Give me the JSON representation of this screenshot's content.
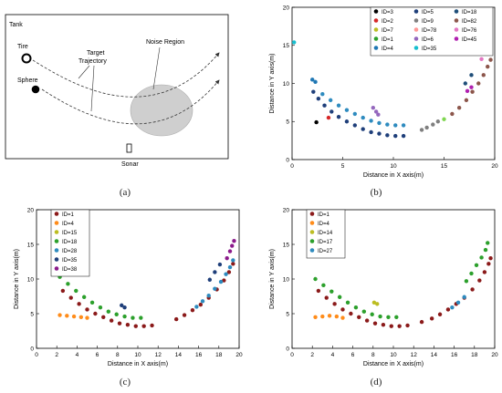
{
  "panels": {
    "a": {
      "caption": "(a)",
      "labels": {
        "tank": "Tank",
        "tire": "Tire",
        "sphere": "Sphere",
        "target": "Target",
        "trajectory": "Trajectory",
        "noise": "Noise Region",
        "sonar": "Sonar"
      }
    },
    "b": {
      "caption": "(b)"
    },
    "c": {
      "caption": "(c)"
    },
    "d": {
      "caption": "(d)"
    }
  },
  "chart_data": [
    {
      "panel": "b",
      "type": "scatter",
      "xlabel": "Distance in X axis(m)",
      "ylabel": "Distance in Y axis(m)",
      "xlim": [
        0,
        20
      ],
      "ylim": [
        0,
        20
      ],
      "xticks": [
        0,
        5,
        10,
        15,
        20
      ],
      "yticks": [
        0,
        5,
        10,
        15,
        20
      ],
      "legend_position": "top-right",
      "legend_columns": 3,
      "series": [
        {
          "name": "ID=3",
          "color": "#000000",
          "points": [
            [
              2.4,
              4.9
            ]
          ]
        },
        {
          "name": "ID=2",
          "color": "#d62728",
          "points": [
            [
              3.6,
              5.5
            ]
          ]
        },
        {
          "name": "ID=7",
          "color": "#bcbd22",
          "points": []
        },
        {
          "name": "ID=1",
          "color": "#2ca02c",
          "points": []
        },
        {
          "name": "ID=4",
          "color": "#1f77b4",
          "points": [
            [
              2.0,
              10.5
            ],
            [
              2.3,
              10.2
            ]
          ]
        },
        {
          "name": "ID=5",
          "color": "#1f3f7a",
          "points": [
            [
              2.1,
              8.9
            ],
            [
              2.6,
              8.0
            ],
            [
              3.2,
              7.1
            ],
            [
              3.9,
              6.3
            ],
            [
              4.6,
              5.6
            ],
            [
              5.4,
              5.0
            ],
            [
              6.2,
              4.5
            ],
            [
              7.0,
              4.0
            ],
            [
              7.8,
              3.6
            ],
            [
              8.6,
              3.4
            ],
            [
              9.4,
              3.2
            ],
            [
              10.2,
              3.1
            ],
            [
              11.0,
              3.1
            ]
          ]
        },
        {
          "name": "ID=9",
          "color": "#7f7f7f",
          "points": [
            [
              12.8,
              3.9
            ],
            [
              13.3,
              4.2
            ],
            [
              13.9,
              4.6
            ],
            [
              14.4,
              5.0
            ]
          ]
        },
        {
          "name": "ID=78",
          "color": "#ff9896",
          "points": []
        },
        {
          "name": "ID=6",
          "color": "#9467bd",
          "points": [
            [
              8.0,
              6.8
            ],
            [
              8.3,
              6.3
            ],
            [
              8.5,
              5.9
            ]
          ]
        },
        {
          "name": "ID=35",
          "color": "#17becf",
          "points": [
            [
              0.2,
              15.4
            ]
          ]
        },
        {
          "name": "ID=18",
          "color": "#1f4e79",
          "points": [
            [
              17.1,
              10.0
            ],
            [
              17.7,
              11.1
            ]
          ]
        },
        {
          "name": "ID=82",
          "color": "#8c564b",
          "points": [
            [
              15.8,
              6.0
            ],
            [
              16.5,
              6.8
            ],
            [
              17.2,
              7.8
            ],
            [
              17.8,
              8.9
            ],
            [
              18.4,
              10.0
            ],
            [
              18.9,
              11.1
            ],
            [
              19.3,
              12.2
            ],
            [
              19.6,
              13.1
            ]
          ]
        },
        {
          "name": "ID=76",
          "color": "#e377c2",
          "points": [
            [
              18.7,
              13.2
            ],
            [
              19.0,
              14.0
            ],
            [
              19.3,
              14.8
            ],
            [
              19.5,
              15.4
            ]
          ]
        },
        {
          "name": "ID=45",
          "color": "#b020b0",
          "points": [
            [
              17.3,
              9.0
            ],
            [
              17.7,
              9.5
            ]
          ]
        },
        {
          "name": "",
          "color": "#2e8bbf",
          "points": [
            [
              3.0,
              8.6
            ],
            [
              3.8,
              7.8
            ],
            [
              4.6,
              7.1
            ],
            [
              5.4,
              6.5
            ],
            [
              6.2,
              6.0
            ],
            [
              7.0,
              5.5
            ],
            [
              7.8,
              5.1
            ],
            [
              8.6,
              4.8
            ],
            [
              9.4,
              4.6
            ],
            [
              10.2,
              4.5
            ],
            [
              11.0,
              4.5
            ]
          ]
        },
        {
          "name": "",
          "color": "#7fd651",
          "points": [
            [
              15.0,
              5.3
            ]
          ]
        }
      ]
    },
    {
      "panel": "c",
      "type": "scatter",
      "xlabel": "Distance in X axis(m)",
      "ylabel": "Distance in Y axis(m)",
      "xlim": [
        0,
        20
      ],
      "ylim": [
        0,
        20
      ],
      "xticks": [
        0,
        2,
        4,
        6,
        8,
        10,
        12,
        14,
        16,
        18,
        20
      ],
      "yticks": [
        0,
        5,
        10,
        15,
        20
      ],
      "legend_position": "top-left",
      "legend_columns": 1,
      "series": [
        {
          "name": "ID=1",
          "color": "#8b1a1a",
          "points": [
            [
              2.6,
              8.3
            ],
            [
              3.4,
              7.3
            ],
            [
              4.2,
              6.4
            ],
            [
              5.0,
              5.6
            ],
            [
              5.8,
              5.0
            ],
            [
              6.6,
              4.5
            ],
            [
              7.4,
              4.0
            ],
            [
              8.2,
              3.6
            ],
            [
              9.0,
              3.4
            ],
            [
              9.8,
              3.2
            ],
            [
              10.6,
              3.2
            ],
            [
              11.4,
              3.3
            ],
            [
              13.8,
              4.2
            ],
            [
              14.6,
              4.8
            ],
            [
              15.4,
              5.5
            ],
            [
              16.2,
              6.3
            ],
            [
              17.0,
              7.3
            ],
            [
              17.8,
              8.5
            ],
            [
              18.5,
              9.8
            ],
            [
              19.0,
              11.0
            ],
            [
              19.4,
              12.2
            ]
          ]
        },
        {
          "name": "ID=4",
          "color": "#ff8c1a",
          "points": [
            [
              2.3,
              4.8
            ],
            [
              3.0,
              4.7
            ],
            [
              3.7,
              4.6
            ],
            [
              4.4,
              4.5
            ],
            [
              5.0,
              4.4
            ]
          ]
        },
        {
          "name": "ID=15",
          "color": "#bcbd22",
          "points": []
        },
        {
          "name": "ID=18",
          "color": "#2ca02c",
          "points": [
            [
              2.3,
              10.3
            ],
            [
              3.1,
              9.3
            ],
            [
              3.9,
              8.3
            ],
            [
              4.7,
              7.4
            ],
            [
              5.5,
              6.6
            ],
            [
              6.3,
              5.9
            ],
            [
              7.1,
              5.3
            ],
            [
              7.9,
              4.9
            ],
            [
              8.7,
              4.6
            ],
            [
              9.5,
              4.4
            ],
            [
              10.3,
              4.4
            ]
          ]
        },
        {
          "name": "ID=28",
          "color": "#2e8bbf",
          "points": [
            [
              15.8,
              6.0
            ],
            [
              16.4,
              6.8
            ],
            [
              17.0,
              7.6
            ],
            [
              17.6,
              8.6
            ],
            [
              18.2,
              9.6
            ],
            [
              18.7,
              10.7
            ],
            [
              19.1,
              11.7
            ],
            [
              19.4,
              12.7
            ]
          ]
        },
        {
          "name": "ID=35",
          "color": "#1f3f7a",
          "points": [
            [
              8.4,
              6.2
            ],
            [
              8.7,
              5.9
            ],
            [
              17.1,
              9.9
            ],
            [
              17.6,
              11.0
            ],
            [
              18.1,
              12.1
            ]
          ]
        },
        {
          "name": "ID=38",
          "color": "#8b1a8b",
          "points": [
            [
              18.8,
              13.0
            ],
            [
              19.1,
              14.0
            ],
            [
              19.3,
              14.8
            ],
            [
              19.5,
              15.5
            ]
          ]
        }
      ]
    },
    {
      "panel": "d",
      "type": "scatter",
      "xlabel": "Distance in X axis(m)",
      "ylabel": "Distance in Y axis(m)",
      "xlim": [
        0,
        20
      ],
      "ylim": [
        0,
        20
      ],
      "xticks": [
        0,
        2,
        4,
        6,
        8,
        10,
        12,
        14,
        16,
        18,
        20
      ],
      "yticks": [
        0,
        5,
        10,
        15,
        20
      ],
      "legend_position": "top-left",
      "legend_columns": 1,
      "series": [
        {
          "name": "ID=1",
          "color": "#8b1a1a",
          "points": [
            [
              2.6,
              8.3
            ],
            [
              3.4,
              7.3
            ],
            [
              4.2,
              6.4
            ],
            [
              5.0,
              5.6
            ],
            [
              5.8,
              5.0
            ],
            [
              6.6,
              4.5
            ],
            [
              7.4,
              4.0
            ],
            [
              8.2,
              3.6
            ],
            [
              9.0,
              3.4
            ],
            [
              9.8,
              3.2
            ],
            [
              10.6,
              3.2
            ],
            [
              11.4,
              3.3
            ],
            [
              12.8,
              3.8
            ],
            [
              13.8,
              4.3
            ],
            [
              14.6,
              4.9
            ],
            [
              15.4,
              5.6
            ],
            [
              16.2,
              6.4
            ],
            [
              17.0,
              7.3
            ],
            [
              17.8,
              8.5
            ],
            [
              18.5,
              9.8
            ],
            [
              19.0,
              11.0
            ],
            [
              19.4,
              12.2
            ],
            [
              19.6,
              13.0
            ]
          ]
        },
        {
          "name": "ID=4",
          "color": "#ff8c1a",
          "points": [
            [
              2.3,
              4.5
            ],
            [
              3.0,
              4.6
            ],
            [
              3.7,
              4.7
            ],
            [
              4.4,
              4.6
            ],
            [
              5.0,
              4.4
            ]
          ]
        },
        {
          "name": "ID=14",
          "color": "#bcbd22",
          "points": [
            [
              8.1,
              6.6
            ],
            [
              8.4,
              6.4
            ]
          ]
        },
        {
          "name": "ID=17",
          "color": "#2ca02c",
          "points": [
            [
              2.3,
              10.0
            ],
            [
              3.1,
              9.1
            ],
            [
              3.9,
              8.2
            ],
            [
              4.7,
              7.4
            ],
            [
              5.5,
              6.6
            ],
            [
              6.3,
              5.9
            ],
            [
              7.1,
              5.3
            ],
            [
              7.9,
              4.9
            ],
            [
              8.7,
              4.6
            ],
            [
              9.5,
              4.5
            ],
            [
              10.3,
              4.5
            ],
            [
              17.2,
              9.7
            ],
            [
              17.7,
              10.8
            ],
            [
              18.2,
              12.0
            ],
            [
              18.7,
              13.1
            ],
            [
              19.1,
              14.2
            ],
            [
              19.3,
              15.2
            ]
          ]
        },
        {
          "name": "ID=27",
          "color": "#2e8bbf",
          "points": [
            [
              15.8,
              5.9
            ],
            [
              16.4,
              6.6
            ],
            [
              17.0,
              7.4
            ]
          ]
        }
      ]
    }
  ]
}
